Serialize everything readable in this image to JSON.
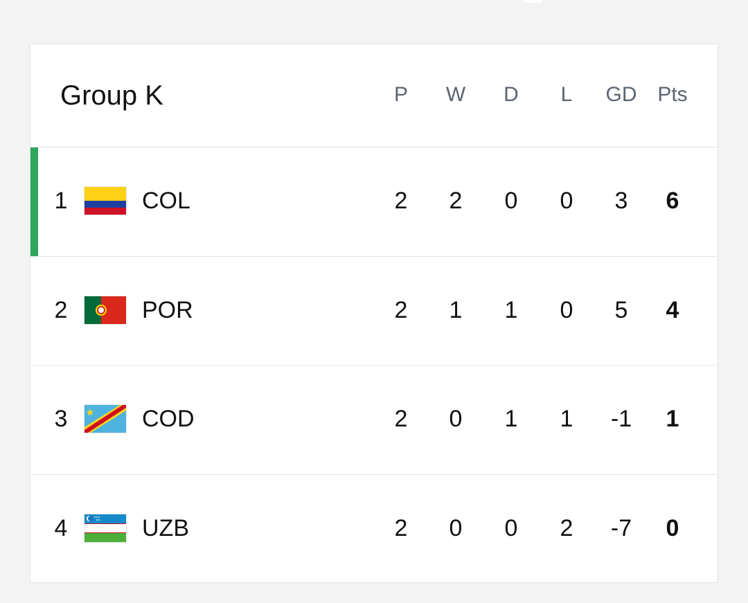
{
  "table": {
    "title": "Group K",
    "columns": [
      "P",
      "W",
      "D",
      "L",
      "GD",
      "Pts"
    ],
    "rows": [
      {
        "rank": 1,
        "team": "COL",
        "stats": [
          2,
          2,
          0,
          0,
          3,
          6
        ]
      },
      {
        "rank": 2,
        "team": "POR",
        "stats": [
          2,
          1,
          1,
          0,
          5,
          4
        ]
      },
      {
        "rank": 3,
        "team": "COD",
        "stats": [
          2,
          0,
          1,
          1,
          -1,
          1
        ]
      },
      {
        "rank": 4,
        "team": "UZB",
        "stats": [
          2,
          0,
          0,
          2,
          -7,
          0
        ]
      }
    ]
  }
}
